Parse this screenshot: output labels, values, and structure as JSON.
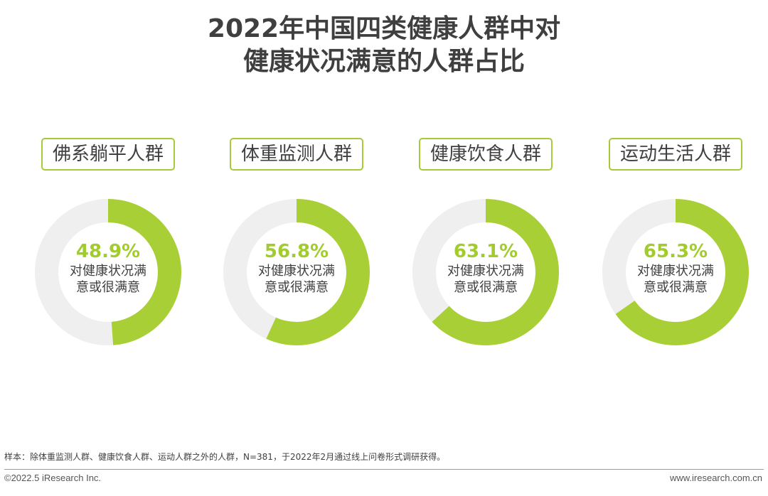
{
  "title": {
    "line1": "2022年中国四类健康人群中对",
    "line2": "健康状况满意的人群占比"
  },
  "chart_data": {
    "type": "pie",
    "subtype": "donut",
    "title": "2022年中国四类健康人群中对健康状况满意的人群占比",
    "center_label": "对健康状况满意或很满意",
    "series": [
      {
        "name": "佛系躺平人群",
        "value": 48.9,
        "value_label": "48.9%"
      },
      {
        "name": "体重监测人群",
        "value": 56.8,
        "value_label": "56.8%"
      },
      {
        "name": "健康饮食人群",
        "value": 63.1,
        "value_label": "63.1%"
      },
      {
        "name": "运动生活人群",
        "value": 65.3,
        "value_label": "65.3%"
      }
    ],
    "colors": {
      "filled": "#a8cf35",
      "remainder": "#efefef"
    }
  },
  "center": {
    "line1": "对健康状况满",
    "line2": "意或很满意"
  },
  "note": "样本：除体重监测人群、健康饮食人群、运动人群之外的人群，N=381，于2022年2月通过线上问卷形式调研获得。",
  "footer": {
    "copyright": "©2022.5 iResearch Inc.",
    "website": "www.iresearch.com.cn"
  }
}
